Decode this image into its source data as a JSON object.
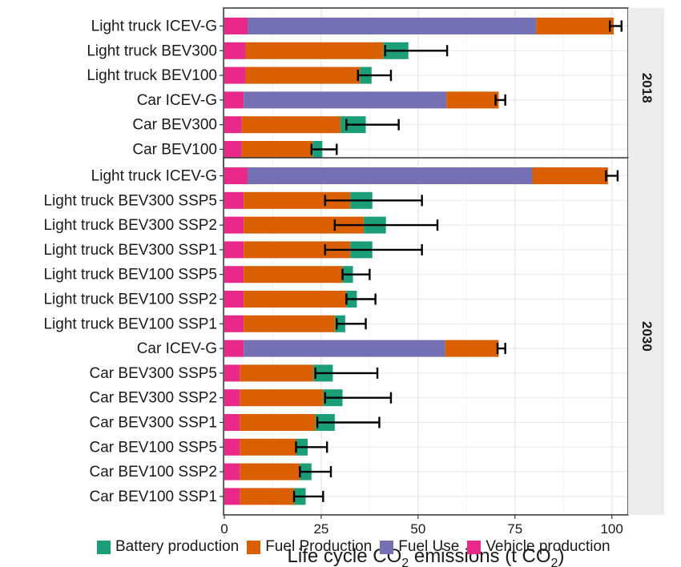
{
  "chart_data": {
    "type": "bar",
    "orientation": "horizontal",
    "stacked": true,
    "xlabel": "Life cycle CO₂ emissions (t CO₂)",
    "xlim": [
      0,
      104
    ],
    "xticks": [
      0,
      25,
      50,
      75,
      100
    ],
    "grid": true,
    "legend_position": "bottom",
    "series": [
      {
        "name": "Vehicle production",
        "color": "#e7298a"
      },
      {
        "name": "Fuel Use",
        "color": "#7570b3"
      },
      {
        "name": "Fuel Production",
        "color": "#d95f02"
      },
      {
        "name": "Battery production",
        "color": "#1b9e77"
      }
    ],
    "legend_order": [
      "Battery production",
      "Fuel Production",
      "Fuel Use",
      "Vehicle production"
    ],
    "panels": [
      {
        "label": "2018",
        "rows": [
          {
            "category": "Light truck ICEV-G",
            "values": {
              "Vehicle production": 6,
              "Fuel Use": 74.5,
              "Fuel Production": 20,
              "Battery production": 0
            },
            "error": [
              99.5,
              102.5
            ]
          },
          {
            "category": "Light truck BEV300",
            "values": {
              "Vehicle production": 5.5,
              "Fuel Use": 0,
              "Fuel Production": 35.5,
              "Battery production": 6.5
            },
            "error": [
              41.5,
              57.5
            ]
          },
          {
            "category": "Light truck BEV100",
            "values": {
              "Vehicle production": 5.5,
              "Fuel Use": 0,
              "Fuel Production": 29.5,
              "Battery production": 3
            },
            "error": [
              34.5,
              43
            ]
          },
          {
            "category": "Car ICEV-G",
            "values": {
              "Vehicle production": 5,
              "Fuel Use": 52.3,
              "Fuel Production": 13.5,
              "Battery production": 0
            },
            "error": [
              70,
              72.5
            ]
          },
          {
            "category": "Car BEV300",
            "values": {
              "Vehicle production": 4.5,
              "Fuel Use": 0,
              "Fuel Production": 25.5,
              "Battery production": 6.5
            },
            "error": [
              31.5,
              45
            ]
          },
          {
            "category": "Car BEV100",
            "values": {
              "Vehicle production": 4.5,
              "Fuel Use": 0,
              "Fuel Production": 18.3,
              "Battery production": 2.5
            },
            "error": [
              22.5,
              29
            ]
          }
        ]
      },
      {
        "label": "2030",
        "rows": [
          {
            "category": "Light truck ICEV-G",
            "values": {
              "Vehicle production": 6,
              "Fuel Use": 73.5,
              "Fuel Production": 19.5,
              "Battery production": 0
            },
            "error": [
              98.5,
              101.5
            ]
          },
          {
            "category": "Light truck BEV300 SSP5",
            "values": {
              "Vehicle production": 5,
              "Fuel Use": 0,
              "Fuel Production": 27.5,
              "Battery production": 5.7
            },
            "error": [
              26,
              51
            ]
          },
          {
            "category": "Light truck BEV300 SSP2",
            "values": {
              "Vehicle production": 5,
              "Fuel Use": 0,
              "Fuel Production": 31,
              "Battery production": 5.7
            },
            "error": [
              28.5,
              55
            ]
          },
          {
            "category": "Light truck BEV300 SSP1",
            "values": {
              "Vehicle production": 5,
              "Fuel Use": 0,
              "Fuel Production": 27.5,
              "Battery production": 5.7
            },
            "error": [
              26,
              51
            ]
          },
          {
            "category": "Light truck BEV100 SSP5",
            "values": {
              "Vehicle production": 5,
              "Fuel Use": 0,
              "Fuel Production": 25.5,
              "Battery production": 2.7
            },
            "error": [
              30.5,
              37.5
            ]
          },
          {
            "category": "Light truck BEV100 SSP2",
            "values": {
              "Vehicle production": 5,
              "Fuel Use": 0,
              "Fuel Production": 26.5,
              "Battery production": 2.7
            },
            "error": [
              31.5,
              39
            ]
          },
          {
            "category": "Light truck BEV100 SSP1",
            "values": {
              "Vehicle production": 5,
              "Fuel Use": 0,
              "Fuel Production": 23.5,
              "Battery production": 2.7
            },
            "error": [
              29,
              36.5
            ]
          },
          {
            "category": "Car ICEV-G",
            "values": {
              "Vehicle production": 5,
              "Fuel Use": 52,
              "Fuel Production": 13.8,
              "Battery production": 0
            },
            "error": [
              70.5,
              72.5
            ]
          },
          {
            "category": "Car BEV300 SSP5",
            "values": {
              "Vehicle production": 4,
              "Fuel Use": 0,
              "Fuel Production": 19,
              "Battery production": 5
            },
            "error": [
              23.5,
              39.5
            ]
          },
          {
            "category": "Car BEV300 SSP2",
            "values": {
              "Vehicle production": 4,
              "Fuel Use": 0,
              "Fuel Production": 21.5,
              "Battery production": 5
            },
            "error": [
              26,
              43
            ]
          },
          {
            "category": "Car BEV300 SSP1",
            "values": {
              "Vehicle production": 4,
              "Fuel Use": 0,
              "Fuel Production": 19.5,
              "Battery production": 5
            },
            "error": [
              24,
              40
            ]
          },
          {
            "category": "Car BEV100 SSP5",
            "values": {
              "Vehicle production": 4,
              "Fuel Use": 0,
              "Fuel Production": 14.5,
              "Battery production": 3
            },
            "error": [
              18.5,
              26.5
            ]
          },
          {
            "category": "Car BEV100 SSP2",
            "values": {
              "Vehicle production": 4,
              "Fuel Use": 0,
              "Fuel Production": 15.5,
              "Battery production": 3
            },
            "error": [
              19.5,
              27.5
            ]
          },
          {
            "category": "Car BEV100 SSP1",
            "values": {
              "Vehicle production": 4,
              "Fuel Use": 0,
              "Fuel Production": 14,
              "Battery production": 3
            },
            "error": [
              18,
              25.5
            ]
          }
        ]
      }
    ]
  }
}
